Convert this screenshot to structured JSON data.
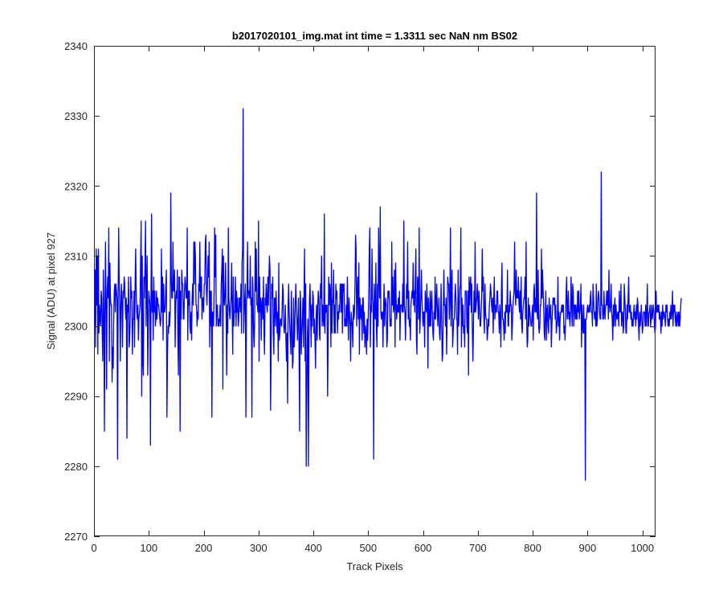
{
  "chart_data": {
    "type": "line",
    "title": "b2017020101_img.mat int time = 1.3311 sec  NaN nm BS02",
    "xlabel": "Track Pixels",
    "ylabel": "Signal (ADU) at pixel 927",
    "xlim": [
      0,
      1024
    ],
    "ylim": [
      2270,
      2340
    ],
    "x_ticks": [
      0,
      100,
      200,
      300,
      400,
      500,
      600,
      700,
      800,
      900,
      1000
    ],
    "y_ticks": [
      2270,
      2280,
      2290,
      2300,
      2310,
      2320,
      2330,
      2340
    ],
    "grid": false,
    "legend": "none",
    "line_color": "#0000ff",
    "series": [
      {
        "x_start": 1,
        "x_step": 1,
        "values": [
          2300,
          2308,
          2297,
          2311,
          2303,
          2310,
          2296,
          2311,
          2299,
          2303,
          2301,
          2300,
          2305,
          2304,
          2299,
          2295,
          2308,
          2302,
          2285,
          2302,
          2312,
          2303,
          2291,
          2305,
          2307,
          2304,
          2314,
          2295,
          2309,
          2304,
          2303,
          2303,
          2292,
          2297,
          2294,
          2301,
          2305,
          2306,
          2302,
          2306,
          2305,
          2304,
          2281,
          2304,
          2314,
          2306,
          2303,
          2295,
          2303,
          2306,
          2303,
          2297,
          2305,
          2304,
          2307,
          2306,
          2303,
          2301,
          2304,
          2284,
          2303,
          2302,
          2307,
          2297,
          2298,
          2301,
          2307,
          2304,
          2305,
          2296,
          2301,
          2301,
          2305,
          2297,
          2306,
          2311,
          2305,
          2302,
          2301,
          2303,
          2298,
          2301,
          2302,
          2303,
          2309,
          2315,
          2290,
          2310,
          2295,
          2293,
          2307,
          2304,
          2309,
          2315,
          2300,
          2306,
          2310,
          2293,
          2300,
          2305,
          2304,
          2303,
          2283,
          2305,
          2316,
          2302,
          2305,
          2298,
          2307,
          2302,
          2305,
          2300,
          2301,
          2305,
          2301,
          2304,
          2303,
          2303,
          2302,
          2301,
          2300,
          2301,
          2311,
          2302,
          2307,
          2298,
          2306,
          2302,
          2302,
          2303,
          2306,
          2308,
          2287,
          2296,
          2300,
          2299,
          2302,
          2300,
          2302,
          2319,
          2307,
          2304,
          2304,
          2312,
          2305,
          2305,
          2308,
          2297,
          2303,
          2305,
          2304,
          2308,
          2298,
          2293,
          2307,
          2307,
          2285,
          2305,
          2301,
          2308,
          2306,
          2306,
          2301,
          2301,
          2305,
          2307,
          2306,
          2304,
          2304,
          2314,
          2298,
          2305,
          2303,
          2305,
          2300,
          2299,
          2302,
          2298,
          2304,
          2306,
          2303,
          2312,
          2306,
          2312,
          2310,
          2303,
          2303,
          2300,
          2302,
          2301,
          2306,
          2305,
          2312,
          2304,
          2307,
          2307,
          2301,
          2304,
          2304,
          2302,
          2306,
          2306,
          2312,
          2313,
          2305,
          2303,
          2306,
          2310,
          2307,
          2312,
          2297,
          2305,
          2300,
          2305,
          2287,
          2302,
          2302,
          2300,
          2305,
          2314,
          2307,
          2313,
          2300,
          2303,
          2303,
          2300,
          2301,
          2300,
          2301,
          2303,
          2300,
          2306,
          2308,
          2311,
          2291,
          2310,
          2304,
          2303,
          2305,
          2309,
          2301,
          2293,
          2303,
          2299,
          2314,
          2304,
          2302,
          2301,
          2303,
          2304,
          2309,
          2302,
          2296,
          2307,
          2300,
          2302,
          2302,
          2307,
          2300,
          2305,
          2302,
          2304,
          2300,
          2301,
          2304,
          2304,
          2302,
          2306,
          2299,
          2309,
          2311,
          2331,
          2299,
          2302,
          2304,
          2306,
          2287,
          2303,
          2305,
          2312,
          2304,
          2305,
          2305,
          2304,
          2310,
          2303,
          2304,
          2287,
          2307,
          2305,
          2299,
          2297,
          2301,
          2312,
          2305,
          2311,
          2303,
          2303,
          2302,
          2315,
          2295,
          2307,
          2302,
          2304,
          2298,
          2303,
          2304,
          2301,
          2307,
          2299,
          2296,
          2304,
          2303,
          2306,
          2303,
          2302,
          2307,
          2303,
          2307,
          2310,
          2308,
          2288,
          2296,
          2306,
          2304,
          2307,
          2299,
          2296,
          2304,
          2304,
          2300,
          2305,
          2302,
          2299,
          2302,
          2295,
          2309,
          2298,
          2299,
          2301,
          2301,
          2300,
          2302,
          2306,
          2305,
          2300,
          2299,
          2300,
          2303,
          2298,
          2295,
          2299,
          2289,
          2303,
          2306,
          2302,
          2300,
          2298,
          2296,
          2305,
          2300,
          2294,
          2295,
          2304,
          2297,
          2299,
          2303,
          2306,
          2303,
          2301,
          2298,
          2301,
          2304,
          2296,
          2285,
          2305,
          2303,
          2296,
          2299,
          2301,
          2304,
          2297,
          2304,
          2311,
          2295,
          2306,
          2280,
          2290,
          2298,
          2301,
          2280,
          2298,
          2304,
          2306,
          2302,
          2297,
          2303,
          2300,
          2305,
          2304,
          2299,
          2301,
          2298,
          2294,
          2301,
          2303,
          2298,
          2303,
          2305,
          2304,
          2299,
          2298,
          2306,
          2304,
          2310,
          2300,
          2303,
          2301,
          2300,
          2316,
          2299,
          2302,
          2303,
          2302,
          2303,
          2290,
          2298,
          2307,
          2303,
          2306,
          2305,
          2297,
          2309,
          2299,
          2303,
          2304,
          2308,
          2299,
          2303,
          2299,
          2306,
          2304,
          2305,
          2299,
          2302,
          2301,
          2303,
          2302,
          2306,
          2306,
          2302,
          2306,
          2299,
          2306,
          2305,
          2306,
          2300,
          2301,
          2300,
          2303,
          2300,
          2307,
          2302,
          2298,
          2304,
          2302,
          2300,
          2295,
          2302,
          2301,
          2300,
          2297,
          2303,
          2301,
          2302,
          2306,
          2313,
          2311,
          2300,
          2305,
          2307,
          2301,
          2309,
          2296,
          2304,
          2302,
          2301,
          2303,
          2298,
          2304,
          2304,
          2299,
          2302,
          2297,
          2300,
          2299,
          2296,
          2301,
          2298,
          2301,
          2304,
          2311,
          2314,
          2297,
          2303,
          2302,
          2311,
          2304,
          2303,
          2281,
          2306,
          2303,
          2301,
          2309,
          2300,
          2297,
          2306,
          2300,
          2314,
          2307,
          2304,
          2317,
          2302,
          2301,
          2302,
          2302,
          2297,
          2302,
          2306,
          2300,
          2303,
          2304,
          2303,
          2297,
          2298,
          2305,
          2304,
          2305,
          2303,
          2300,
          2301,
          2300,
          2312,
          2303,
          2307,
          2302,
          2303,
          2308,
          2297,
          2309,
          2304,
          2301,
          2303,
          2302,
          2304,
          2302,
          2305,
          2298,
          2303,
          2303,
          2303,
          2302,
          2306,
          2302,
          2315,
          2303,
          2302,
          2298,
          2302,
          2306,
          2304,
          2312,
          2301,
          2305,
          2300,
          2301,
          2298,
          2303,
          2304,
          2305,
          2304,
          2309,
          2303,
          2305,
          2302,
          2307,
          2311,
          2298,
          2296,
          2307,
          2306,
          2301,
          2314,
          2299,
          2301,
          2304,
          2308,
          2304,
          2302,
          2300,
          2302,
          2302,
          2297,
          2305,
          2303,
          2302,
          2306,
          2303,
          2294,
          2304,
          2300,
          2300,
          2305,
          2300,
          2303,
          2305,
          2302,
          2299,
          2298,
          2302,
          2301,
          2307,
          2301,
          2303,
          2306,
          2303,
          2300,
          2302,
          2304,
          2299,
          2298,
          2301,
          2306,
          2301,
          2295,
          2296,
          2302,
          2308,
          2303,
          2303,
          2300,
          2304,
          2296,
          2302,
          2307,
          2306,
          2306,
          2301,
          2304,
          2314,
          2300,
          2305,
          2308,
          2297,
          2299,
          2301,
          2301,
          2304,
          2306,
          2304,
          2301,
          2301,
          2296,
          2308,
          2300,
          2302,
          2305,
          2306,
          2314,
          2297,
          2304,
          2300,
          2303,
          2299,
          2300,
          2297,
          2305,
          2305,
          2305,
          2300,
          2299,
          2305,
          2293,
          2307,
          2303,
          2306,
          2307,
          2302,
          2306,
          2299,
          2295,
          2300,
          2305,
          2302,
          2312,
          2302,
          2303,
          2304,
          2306,
          2304,
          2301,
          2305,
          2303,
          2300,
          2300,
          2302,
          2304,
          2311,
          2305,
          2307,
          2301,
          2299,
          2306,
          2302,
          2301,
          2301,
          2298,
          2299,
          2301,
          2300,
          2303,
          2304,
          2306,
          2305,
          2303,
          2302,
          2304,
          2299,
          2304,
          2307,
          2301,
          2303,
          2302,
          2302,
          2305,
          2305,
          2302,
          2302,
          2299,
          2303,
          2301,
          2297,
          2305,
          2309,
          2301,
          2301,
          2300,
          2298,
          2302,
          2299,
          2303,
          2302,
          2302,
          2308,
          2300,
          2300,
          2303,
          2302,
          2305,
          2303,
          2303,
          2298,
          2300,
          2303,
          2304,
          2305,
          2312,
          2305,
          2303,
          2308,
          2304,
          2305,
          2304,
          2307,
          2303,
          2302,
          2305,
          2301,
          2307,
          2300,
          2299,
          2302,
          2303,
          2304,
          2304,
          2307,
          2301,
          2312,
          2301,
          2297,
          2298,
          2304,
          2300,
          2303,
          2302,
          2301,
          2300,
          2300,
          2302,
          2303,
          2298,
          2305,
          2306,
          2302,
          2304,
          2302,
          2319,
          2302,
          2301,
          2308,
          2300,
          2299,
          2300,
          2303,
          2303,
          2311,
          2304,
          2308,
          2305,
          2303,
          2299,
          2298,
          2302,
          2305,
          2298,
          2302,
          2303,
          2300,
          2299,
          2304,
          2302,
          2301,
          2303,
          2297,
          2300,
          2302,
          2304,
          2304,
          2303,
          2304,
          2301,
          2303,
          2299,
          2300,
          2301,
          2307,
          2300,
          2302,
          2298,
          2301,
          2302,
          2302,
          2303,
          2302,
          2303,
          2303,
          2299,
          2300,
          2298,
          2301,
          2305,
          2307,
          2301,
          2302,
          2305,
          2301,
          2302,
          2300,
          2302,
          2307,
          2303,
          2300,
          2306,
          2305,
          2300,
          2303,
          2303,
          2301,
          2303,
          2301,
          2301,
          2305,
          2302,
          2305,
          2301,
          2302,
          2303,
          2306,
          2297,
          2303,
          2300,
          2299,
          2303,
          2299,
          2301,
          2278,
          2301,
          2301,
          2302,
          2303,
          2302,
          2302,
          2303,
          2302,
          2304,
          2305,
          2302,
          2302,
          2300,
          2306,
          2304,
          2302,
          2301,
          2302,
          2300,
          2306,
          2300,
          2301,
          2304,
          2305,
          2304,
          2302,
          2301,
          2301,
          2322,
          2303,
          2303,
          2301,
          2301,
          2305,
          2302,
          2301,
          2303,
          2303,
          2305,
          2303,
          2305,
          2301,
          2308,
          2303,
          2302,
          2303,
          2306,
          2302,
          2301,
          2298,
          2303,
          2300,
          2303,
          2304,
          2300,
          2303,
          2301,
          2301,
          2302,
          2302,
          2300,
          2305,
          2302,
          2302,
          2306,
          2300,
          2302,
          2302,
          2299,
          2300,
          2306,
          2304,
          2302,
          2299,
          2299,
          2303,
          2301,
          2304,
          2307,
          2302,
          2302,
          2303,
          2301,
          2302,
          2300,
          2301,
          2300,
          2302,
          2303,
          2301,
          2302,
          2300,
          2303,
          2301,
          2304,
          2303,
          2300,
          2298,
          2302,
          2300,
          2301,
          2303,
          2301,
          2299,
          2300,
          2302,
          2302,
          2302,
          2300,
          2303,
          2300,
          2302,
          2306,
          2300,
          2300,
          2302,
          2302,
          2303,
          2300,
          2301,
          2303,
          2301,
          2302,
          2303,
          2302,
          2300,
          2299,
          2300,
          2305,
          2302,
          2302,
          2303,
          2302,
          2303,
          2301,
          2302,
          2301,
          2299,
          2302,
          2300,
          2303,
          2301,
          2302,
          2302,
          2301,
          2300,
          2303,
          2302,
          2303,
          2301,
          2300,
          2301,
          2300,
          2302,
          2301,
          2303,
          2301,
          2302,
          2305,
          2300,
          2303,
          2302,
          2303,
          2301,
          2300,
          2302,
          2300,
          2301,
          2302,
          2300,
          2302,
          2300,
          2301,
          2303,
          2304
        ]
      }
    ]
  }
}
